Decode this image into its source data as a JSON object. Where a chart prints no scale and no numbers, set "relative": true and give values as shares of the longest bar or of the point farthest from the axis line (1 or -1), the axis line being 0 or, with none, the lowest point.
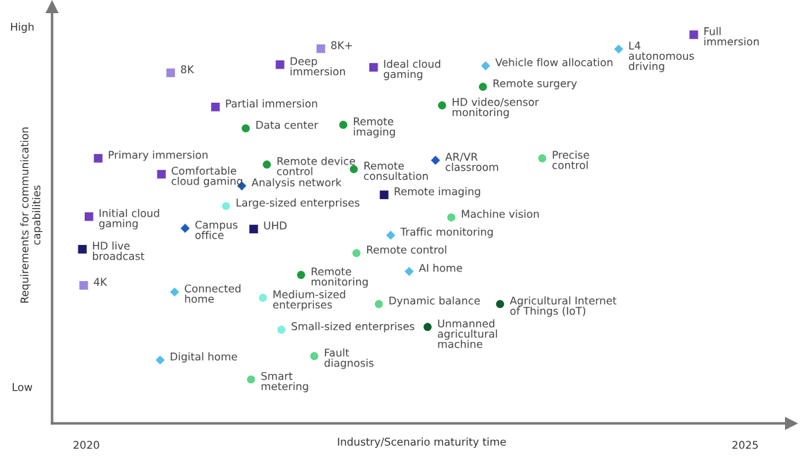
{
  "chart_data": {
    "type": "scatter",
    "xlabel": "Industry/Scenario maturity time",
    "ylabel": "Requirements for communication\ncapabilities",
    "xlim": [
      2019.74,
      2025.35
    ],
    "xticks": [
      2020,
      2025
    ],
    "relative": true,
    "grid": false,
    "series": [
      {
        "color": "#6f3fc0",
        "marker": "square",
        "x": [
          2024.61,
          2022.18,
          2021.47,
          2020.98,
          2020.09,
          2020.57,
          2020.02
        ],
        "values": [
          1.0,
          0.916,
          0.923,
          0.814,
          0.682,
          0.641,
          0.532
        ]
      },
      {
        "color": "#9b87dd",
        "marker": "square",
        "x": [
          2021.78,
          2020.64,
          2019.98
        ],
        "values": [
          0.964,
          0.902,
          0.355
        ]
      },
      {
        "color": "#1c1a6b",
        "marker": "square",
        "x": [
          2022.26,
          2021.27,
          2019.97
        ],
        "values": [
          0.588,
          0.5,
          0.448
        ]
      },
      {
        "color": "#1f9a3f",
        "marker": "circle",
        "x": [
          2023.01,
          2022.7,
          2021.21,
          2021.95,
          2021.37,
          2022.03,
          2021.63
        ],
        "values": [
          0.866,
          0.818,
          0.759,
          0.768,
          0.666,
          0.654,
          0.382
        ]
      },
      {
        "color": "#0e5c2c",
        "marker": "circle",
        "x": [
          2023.14,
          2022.59
        ],
        "values": [
          0.307,
          0.248
        ]
      },
      {
        "color": "#5fd68a",
        "marker": "circle",
        "x": [
          2023.46,
          2022.77,
          2022.05,
          2022.22,
          2021.73,
          2021.25
        ],
        "values": [
          0.682,
          0.53,
          0.438,
          0.307,
          0.173,
          0.113
        ]
      },
      {
        "color": "#7eeee0",
        "marker": "circle",
        "x": [
          2021.06,
          2021.34,
          2021.48
        ],
        "values": [
          0.559,
          0.323,
          0.241
        ]
      },
      {
        "color": "#1f5cc0",
        "marker": "diamond",
        "x": [
          2022.65,
          2021.18,
          2020.75
        ],
        "values": [
          0.677,
          0.611,
          0.502
        ]
      },
      {
        "color": "#55bde8",
        "marker": "diamond",
        "x": [
          2024.04,
          2023.03,
          2022.31,
          2022.45,
          2020.67,
          2020.56
        ],
        "values": [
          0.963,
          0.92,
          0.484,
          0.391,
          0.338,
          0.163
        ]
      }
    ],
    "annotations": [
      "High",
      "Low",
      {
        "text": "Full\nimmersion",
        "x": 2024.61,
        "y": 1.0
      },
      {
        "text": "Ideal cloud\ngaming",
        "x": 2022.18,
        "y": 0.916
      },
      {
        "text": "Deep\nimmersion",
        "x": 2021.47,
        "y": 0.923
      },
      {
        "text": "Partial immersion",
        "x": 2020.98,
        "y": 0.814
      },
      {
        "text": "Primary immersion",
        "x": 2020.09,
        "y": 0.682
      },
      {
        "text": "Comfortable\ncloud gaming",
        "x": 2020.57,
        "y": 0.641
      },
      {
        "text": "Initial cloud\ngaming",
        "x": 2020.02,
        "y": 0.532
      },
      {
        "text": "8K+",
        "x": 2021.78,
        "y": 0.964
      },
      {
        "text": "8K",
        "x": 2020.64,
        "y": 0.902
      },
      {
        "text": "4K",
        "x": 2019.98,
        "y": 0.355
      },
      {
        "text": "Remote imaging",
        "x": 2022.26,
        "y": 0.588
      },
      {
        "text": "UHD",
        "x": 2021.27,
        "y": 0.5
      },
      {
        "text": "HD live\nbroadcast",
        "x": 2019.97,
        "y": 0.448
      },
      {
        "text": "Remote surgery",
        "x": 2023.01,
        "y": 0.866
      },
      {
        "text": "HD video/sensor\nmonitoring",
        "x": 2022.7,
        "y": 0.818
      },
      {
        "text": "Data center",
        "x": 2021.21,
        "y": 0.759
      },
      {
        "text": "Remote\nimaging",
        "x": 2021.95,
        "y": 0.768
      },
      {
        "text": "Remote device\ncontrol",
        "x": 2021.37,
        "y": 0.666
      },
      {
        "text": "Remote\nconsultation",
        "x": 2022.03,
        "y": 0.654
      },
      {
        "text": "Remote\nmonitoring",
        "x": 2021.63,
        "y": 0.382
      },
      {
        "text": "Agricultural Internet\nof Things (IoT)",
        "x": 2023.14,
        "y": 0.307
      },
      {
        "text": "Unmanned\nagricultural\nmachine",
        "x": 2022.59,
        "y": 0.248
      },
      {
        "text": "Precise\ncontrol",
        "x": 2023.46,
        "y": 0.682
      },
      {
        "text": "Machine vision",
        "x": 2022.77,
        "y": 0.53
      },
      {
        "text": "Remote control",
        "x": 2022.05,
        "y": 0.438
      },
      {
        "text": "Dynamic balance",
        "x": 2022.22,
        "y": 0.307
      },
      {
        "text": "Fault\ndiagnosis",
        "x": 2021.73,
        "y": 0.173
      },
      {
        "text": "Smart\nmetering",
        "x": 2021.25,
        "y": 0.113
      },
      {
        "text": "Large-sized enterprises",
        "x": 2021.06,
        "y": 0.559
      },
      {
        "text": "Medium-sized\nenterprises",
        "x": 2021.34,
        "y": 0.323
      },
      {
        "text": "Small-sized enterprises",
        "x": 2021.48,
        "y": 0.241
      },
      {
        "text": "AR/VR\nclassroom",
        "x": 2022.65,
        "y": 0.677
      },
      {
        "text": "Analysis network",
        "x": 2021.18,
        "y": 0.611
      },
      {
        "text": "Campus\noffice",
        "x": 2020.75,
        "y": 0.502
      },
      {
        "text": "L4\nautonomous\ndriving",
        "x": 2024.04,
        "y": 0.963
      },
      {
        "text": "Vehicle flow allocation",
        "x": 2023.03,
        "y": 0.92
      },
      {
        "text": "Traffic monitoring",
        "x": 2022.31,
        "y": 0.484
      },
      {
        "text": "AI home",
        "x": 2022.45,
        "y": 0.391
      },
      {
        "text": "Connected\nhome",
        "x": 2020.67,
        "y": 0.338
      },
      {
        "text": "Digital home",
        "x": 2020.56,
        "y": 0.163
      }
    ]
  }
}
